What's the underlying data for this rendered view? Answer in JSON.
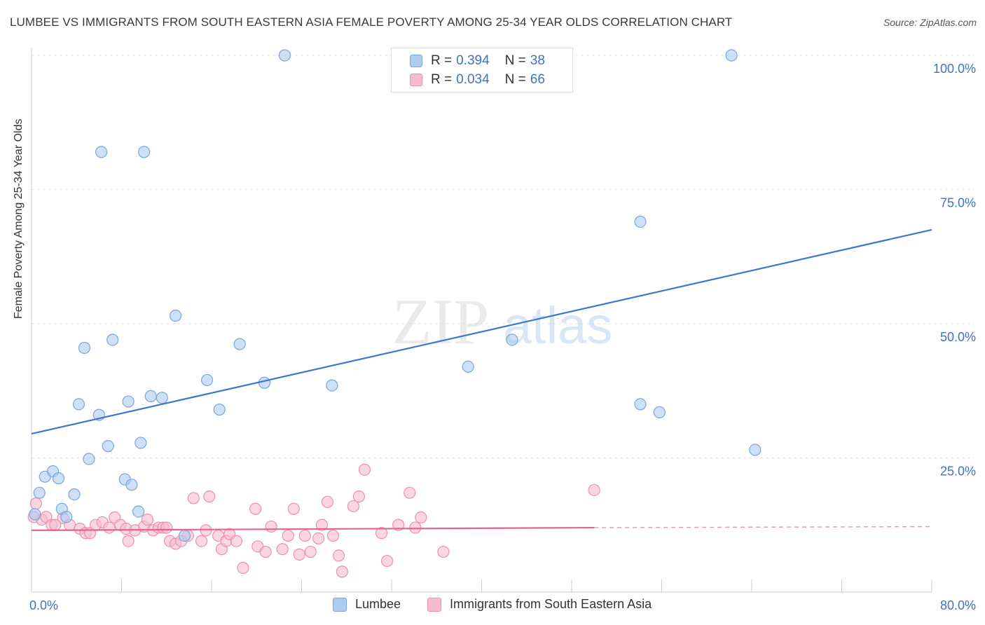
{
  "title": "LUMBEE VS IMMIGRANTS FROM SOUTH EASTERN ASIA FEMALE POVERTY AMONG 25-34 YEAR OLDS CORRELATION CHART",
  "source": "Source: ZipAtlas.com",
  "watermark": {
    "zip": "ZIP",
    "atlas": "atlas"
  },
  "colors": {
    "blue_fill": "#aecbf0",
    "blue_stroke": "#7aa6dc",
    "blue_line": "#3d78cc",
    "pink_fill": "#f6bccd",
    "pink_stroke": "#ee8fae",
    "pink_line": "#e0668f",
    "axis_text": "#3d73c4",
    "grid": "#e3e3e3"
  },
  "legend": {
    "r_label": "R =",
    "n_label": "N =",
    "rows": [
      {
        "r": "0.394",
        "n": "38"
      },
      {
        "r": "0.034",
        "n": "66"
      }
    ]
  },
  "bottom_legend": [
    "Lumbee",
    "Immigrants from South Eastern Asia"
  ],
  "chart_data": {
    "type": "scatter",
    "xlabel": "",
    "ylabel": "Female Poverty Among 25-34 Year Olds",
    "xlim": [
      0,
      80
    ],
    "ylim": [
      0,
      100
    ],
    "x_tick_labels": [
      "0.0%",
      "80.0%"
    ],
    "y_tick_labels": [
      "100.0%",
      "75.0%",
      "50.0%",
      "25.0%"
    ],
    "y_ticks": [
      100,
      75,
      50,
      25
    ],
    "series": [
      {
        "name": "Lumbee",
        "r": 0.394,
        "n": 38,
        "trend": {
          "x0": 0,
          "y0": 29.5,
          "x1": 80,
          "y1": 67.5
        },
        "points": [
          [
            0.3,
            14.5
          ],
          [
            0.7,
            18.5
          ],
          [
            1.2,
            21.5
          ],
          [
            1.9,
            22.5
          ],
          [
            2.4,
            21.2
          ],
          [
            2.7,
            15.5
          ],
          [
            3.1,
            14.0
          ],
          [
            3.8,
            18.2
          ],
          [
            4.2,
            35.0
          ],
          [
            4.7,
            45.5
          ],
          [
            5.1,
            24.8
          ],
          [
            6.0,
            33.0
          ],
          [
            6.8,
            27.2
          ],
          [
            7.2,
            47.0
          ],
          [
            8.3,
            21.0
          ],
          [
            8.9,
            20.0
          ],
          [
            9.5,
            15.0
          ],
          [
            8.6,
            35.5
          ],
          [
            10.6,
            36.5
          ],
          [
            11.6,
            36.2
          ],
          [
            12.8,
            51.5
          ],
          [
            13.6,
            10.5
          ],
          [
            15.6,
            39.5
          ],
          [
            16.7,
            34.0
          ],
          [
            18.5,
            46.2
          ],
          [
            20.7,
            39.0
          ],
          [
            22.5,
            100.0
          ],
          [
            26.7,
            38.5
          ],
          [
            6.2,
            82.0
          ],
          [
            10.0,
            82.0
          ],
          [
            9.7,
            27.8
          ],
          [
            38.8,
            42.0
          ],
          [
            42.7,
            47.0
          ],
          [
            54.1,
            69.0
          ],
          [
            54.1,
            35.0
          ],
          [
            55.8,
            33.5
          ],
          [
            62.2,
            100.0
          ],
          [
            64.3,
            26.5
          ]
        ]
      },
      {
        "name": "Immigrants from South Eastern Asia",
        "r": 0.034,
        "n": 66,
        "trend": {
          "x0": 0,
          "y0": 11.5,
          "x1": 50,
          "y1": 12.0,
          "dash_to_x": 80,
          "dash_to_y": 12.2
        },
        "points": [
          [
            0.4,
            16.5
          ],
          [
            0.9,
            13.5
          ],
          [
            1.3,
            14.0
          ],
          [
            1.8,
            12.5
          ],
          [
            2.8,
            13.8
          ],
          [
            3.4,
            12.5
          ],
          [
            4.3,
            11.8
          ],
          [
            4.8,
            11.0
          ],
          [
            5.2,
            11.0
          ],
          [
            5.7,
            12.5
          ],
          [
            6.3,
            13.0
          ],
          [
            6.9,
            12.0
          ],
          [
            7.4,
            13.9
          ],
          [
            7.9,
            12.5
          ],
          [
            8.4,
            11.8
          ],
          [
            8.6,
            9.5
          ],
          [
            9.2,
            11.5
          ],
          [
            10.0,
            12.2
          ],
          [
            10.3,
            13.5
          ],
          [
            10.8,
            11.5
          ],
          [
            11.3,
            12.0
          ],
          [
            11.7,
            12.0
          ],
          [
            12.3,
            9.5
          ],
          [
            12.8,
            9.0
          ],
          [
            13.3,
            9.5
          ],
          [
            13.9,
            10.5
          ],
          [
            14.4,
            17.5
          ],
          [
            15.1,
            9.5
          ],
          [
            15.5,
            11.5
          ],
          [
            15.8,
            17.8
          ],
          [
            16.6,
            10.5
          ],
          [
            16.9,
            8.0
          ],
          [
            17.3,
            9.5
          ],
          [
            17.6,
            10.8
          ],
          [
            18.2,
            9.5
          ],
          [
            18.8,
            4.5
          ],
          [
            19.9,
            15.5
          ],
          [
            20.1,
            8.5
          ],
          [
            20.8,
            7.5
          ],
          [
            21.3,
            12.2
          ],
          [
            22.3,
            8.0
          ],
          [
            22.8,
            10.5
          ],
          [
            23.3,
            15.5
          ],
          [
            23.8,
            7.0
          ],
          [
            24.3,
            10.5
          ],
          [
            24.8,
            7.5
          ],
          [
            25.5,
            10.0
          ],
          [
            25.8,
            12.5
          ],
          [
            26.3,
            16.8
          ],
          [
            26.8,
            10.5
          ],
          [
            27.3,
            6.8
          ],
          [
            27.6,
            3.8
          ],
          [
            28.6,
            16.0
          ],
          [
            29.1,
            17.8
          ],
          [
            29.6,
            22.8
          ],
          [
            31.1,
            11.0
          ],
          [
            31.6,
            5.8
          ],
          [
            32.6,
            12.5
          ],
          [
            33.6,
            18.5
          ],
          [
            34.1,
            12.0
          ],
          [
            34.6,
            13.9
          ],
          [
            50.0,
            19.0
          ],
          [
            36.6,
            7.5
          ],
          [
            0.2,
            14.0
          ],
          [
            2.1,
            12.5
          ],
          [
            12.0,
            12.0
          ]
        ]
      }
    ]
  }
}
